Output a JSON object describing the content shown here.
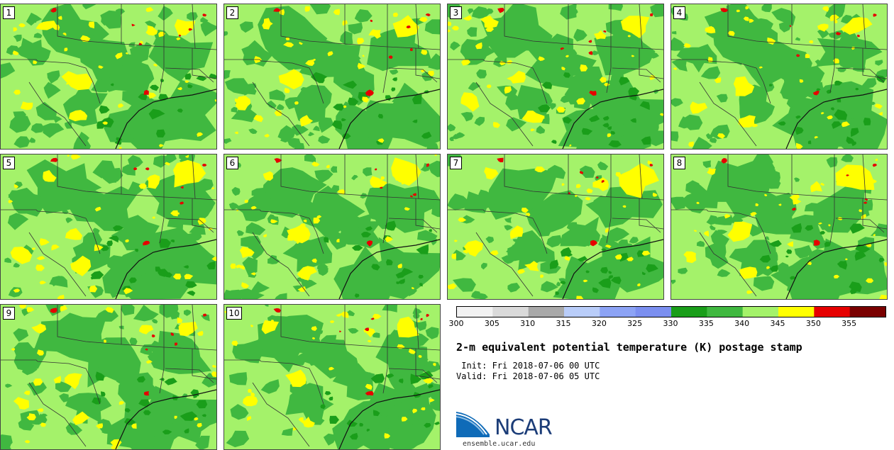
{
  "panels": [
    {
      "label": "1"
    },
    {
      "label": "2"
    },
    {
      "label": "3"
    },
    {
      "label": "4"
    },
    {
      "label": "5"
    },
    {
      "label": "6"
    },
    {
      "label": "7"
    },
    {
      "label": "8"
    },
    {
      "label": "9"
    },
    {
      "label": "10"
    }
  ],
  "colorbar": {
    "ticks": [
      "300",
      "305",
      "310",
      "315",
      "320",
      "325",
      "330",
      "335",
      "340",
      "345",
      "350",
      "355"
    ],
    "colors": [
      "#f2f2f2",
      "#dadada",
      "#a9a9a9",
      "#b9cdf9",
      "#8ca3f5",
      "#7b8ff0",
      "#1a9e1a",
      "#40b840",
      "#a4f26a",
      "#ffff00",
      "#e60000",
      "#7a0000"
    ]
  },
  "map_colors": {
    "background": "#a4f26a",
    "mid": "#40b840",
    "dark": "#1a9e1a",
    "warm": "#ffff00",
    "hot": "#e60000",
    "line": "#333333"
  },
  "title": "2-m equivalent potential temperature (K) postage stamp",
  "init": " Init: Fri 2018-07-06 00 UTC",
  "valid": "Valid: Fri 2018-07-06 05 UTC",
  "logo": {
    "name": "NCAR",
    "url": "ensemble.ucar.edu"
  }
}
